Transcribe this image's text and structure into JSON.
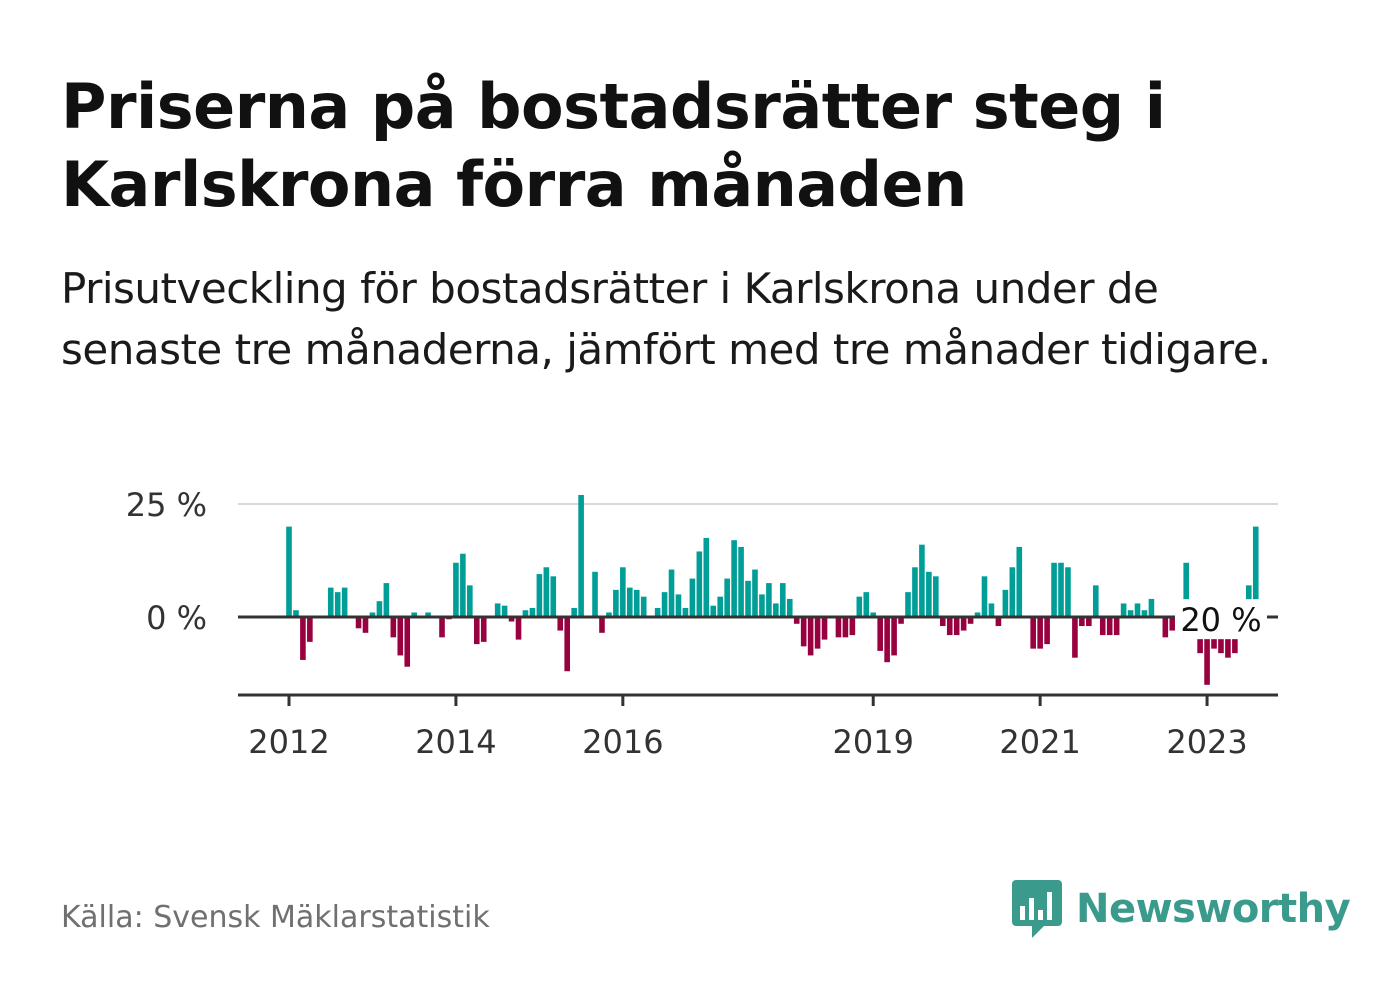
{
  "header": {
    "title": "Priserna på bostadsrätter steg i Karlskrona förra månaden",
    "subtitle": "Prisutveckling för bostadsrätter i Karlskrona under de senaste tre månaderna, jämfört med tre månader tidigare."
  },
  "footer": {
    "source": "Källa: Svensk Mäklarstatistik",
    "brand": "Newsworthy"
  },
  "colors": {
    "positive": "#009e96",
    "negative": "#98003f",
    "brand": "#3a9a8c",
    "grid": "#d9d9d9",
    "axis": "#333333"
  },
  "chart_data": {
    "type": "bar",
    "title": "",
    "xlabel": "",
    "ylabel": "",
    "ylim": [
      -18,
      27
    ],
    "y_ticks": [
      {
        "value": 0,
        "label": "0 %"
      },
      {
        "value": 25,
        "label": "25 %"
      }
    ],
    "x_ticks": [
      {
        "date": "2012-01",
        "label": "2012"
      },
      {
        "date": "2014-01",
        "label": "2014"
      },
      {
        "date": "2016-01",
        "label": "2016"
      },
      {
        "date": "2019-01",
        "label": "2019"
      },
      {
        "date": "2021-01",
        "label": "2021"
      },
      {
        "date": "2023-01",
        "label": "2023"
      }
    ],
    "annotation": {
      "date": "2023-03",
      "label": "20 %"
    },
    "series": [
      {
        "start": "2012-01",
        "values": [
          20,
          1.5,
          -9.5,
          -5.5,
          0,
          0,
          6.5,
          5.5,
          6.5,
          0,
          -2.5,
          -3.5,
          1,
          3.5,
          7.5,
          -4.5,
          -8.5,
          -11,
          1,
          0,
          1,
          0,
          -4.5,
          -0.5,
          12,
          14,
          7,
          -6,
          -5.5,
          0,
          3,
          2.5,
          -1,
          -5,
          1.5,
          2,
          9.5,
          11,
          9,
          -3,
          -12,
          2,
          27,
          0,
          10,
          -3.5,
          1,
          6,
          11,
          6.5,
          6,
          4.5,
          0,
          2,
          5.5,
          10.5,
          5,
          2,
          8.5,
          14.5,
          17.5,
          2.5,
          4.5,
          8.5,
          17,
          15.5,
          8,
          10.5,
          5,
          7.5,
          3,
          7.5,
          4,
          -1.5,
          -6.5,
          -8.5,
          -7,
          -5,
          0,
          -4.5,
          -4.5,
          -4,
          4.5,
          5.5,
          1,
          -7.5,
          -10,
          -8.5,
          -1.5,
          5.5,
          11,
          16,
          10,
          9,
          -2,
          -4,
          -4,
          -3,
          -1.5,
          1,
          9,
          3,
          -2,
          6,
          11,
          15.5,
          0,
          -7,
          -7,
          -6,
          12,
          12,
          11,
          -9,
          -2,
          -2,
          7,
          -4,
          -4,
          -4,
          3,
          1.5,
          3,
          1.5,
          4,
          0,
          -4.5,
          -3,
          3,
          12,
          -4,
          -8,
          -15,
          -7,
          -8,
          -9,
          -8,
          -1.5,
          7,
          20
        ]
      }
    ]
  }
}
